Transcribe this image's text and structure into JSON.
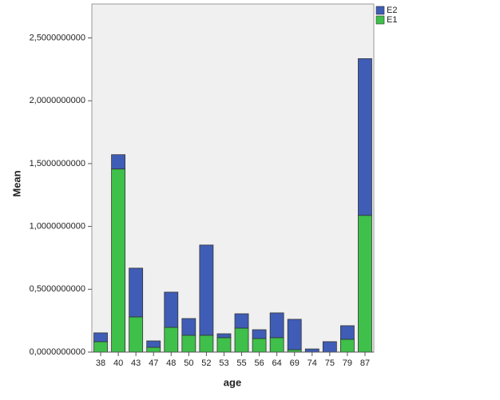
{
  "chart_data": {
    "type": "stacked-bar",
    "x_label": "age",
    "y_label": "Mean",
    "categories": [
      "38",
      "40",
      "43",
      "47",
      "48",
      "50",
      "52",
      "53",
      "55",
      "56",
      "64",
      "69",
      "74",
      "75",
      "79",
      "87"
    ],
    "series": [
      {
        "name": "E1",
        "color": "#3ec04a",
        "values": [
          0.083,
          1.457,
          0.28,
          0.038,
          0.197,
          0.134,
          0.134,
          0.115,
          0.191,
          0.108,
          0.115,
          0.019,
          0,
          0,
          0.102,
          1.088
        ]
      },
      {
        "name": "E2",
        "color": "#3f5db6",
        "values": [
          0.07,
          0.114,
          0.388,
          0.051,
          0.28,
          0.133,
          0.718,
          0.031,
          0.114,
          0.07,
          0.197,
          0.242,
          0.025,
          0.083,
          0.108,
          1.247
        ]
      }
    ],
    "ylim": [
      0,
      2.77
    ],
    "yticks": [
      {
        "value": 0,
        "label": "0,0000000000"
      },
      {
        "value": 0.5,
        "label": "0,5000000000"
      },
      {
        "value": 1,
        "label": "1,0000000000"
      },
      {
        "value": 1.5,
        "label": "1,5000000000"
      },
      {
        "value": 2,
        "label": "2,0000000000"
      },
      {
        "value": 2.5,
        "label": "2,5000000000"
      }
    ],
    "legend": "top-right-outside"
  }
}
